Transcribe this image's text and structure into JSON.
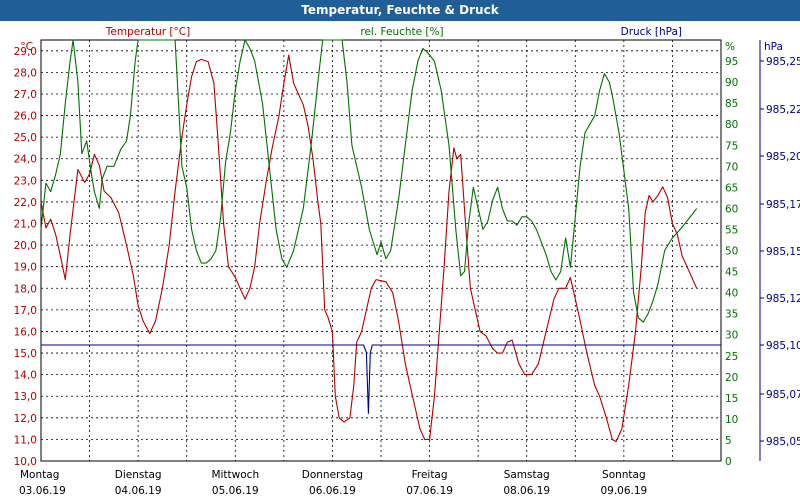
{
  "chart_data": {
    "type": "line",
    "title": "Temperatur, Feuchte & Druck",
    "legend": [
      {
        "name": "Temperatur [°C]",
        "color": "#b00000"
      },
      {
        "name": "rel. Feuchte [%]",
        "color": "#007000"
      },
      {
        "name": "Druck [hPa]",
        "color": "#00008b"
      }
    ],
    "axes": {
      "left": {
        "unit": "°C",
        "min": 10,
        "max": 29.5,
        "ticks": [
          "10,0",
          "11,0",
          "12,0",
          "13,0",
          "14,0",
          "15,0",
          "16,0",
          "17,0",
          "18,0",
          "19,0",
          "20,0",
          "21,0",
          "22,0",
          "23,0",
          "24,0",
          "25,0",
          "26,0",
          "27,0",
          "28,0",
          "29,0"
        ],
        "color": "#b00000"
      },
      "right1": {
        "unit": "%",
        "min": 0,
        "max": 100,
        "ticks": [
          "0",
          "5",
          "10",
          "15",
          "20",
          "25",
          "30",
          "35",
          "40",
          "45",
          "50",
          "55",
          "60",
          "65",
          "70",
          "75",
          "80",
          "85",
          "90",
          "95"
        ],
        "color": "#007000"
      },
      "right2": {
        "unit": "hPa",
        "ticks": [
          "985,05",
          "985,07",
          "985,10",
          "985,12",
          "985,15",
          "985,17",
          "985,20",
          "985,22",
          "985,25"
        ],
        "color": "#00008b"
      }
    },
    "x": {
      "days": [
        {
          "name": "Montag",
          "date": "03.06.19"
        },
        {
          "name": "Dienstag",
          "date": "04.06.19"
        },
        {
          "name": "Mittwoch",
          "date": "05.06.19"
        },
        {
          "name": "Donnerstag",
          "date": "06.06.19"
        },
        {
          "name": "Freitag",
          "date": "07.06.19"
        },
        {
          "name": "Samstag",
          "date": "08.06.19"
        },
        {
          "name": "Sonntag",
          "date": "09.06.19"
        }
      ],
      "min": 0,
      "max": 7,
      "grid_step": 0.5
    },
    "grid": true,
    "series": [
      {
        "name": "Temperatur [°C]",
        "axis": "left",
        "color": "#b00000",
        "points": [
          [
            0,
            22.0
          ],
          [
            0.05,
            20.8
          ],
          [
            0.1,
            21.2
          ],
          [
            0.15,
            20.5
          ],
          [
            0.2,
            19.5
          ],
          [
            0.25,
            18.4
          ],
          [
            0.3,
            20.5
          ],
          [
            0.38,
            23.5
          ],
          [
            0.45,
            22.9
          ],
          [
            0.5,
            23.3
          ],
          [
            0.55,
            24.2
          ],
          [
            0.6,
            23.7
          ],
          [
            0.65,
            22.5
          ],
          [
            0.72,
            22.2
          ],
          [
            0.8,
            21.5
          ],
          [
            0.88,
            20.0
          ],
          [
            0.95,
            18.6
          ],
          [
            1.0,
            17.2
          ],
          [
            1.05,
            16.5
          ],
          [
            1.12,
            15.9
          ],
          [
            1.18,
            16.5
          ],
          [
            1.25,
            18.0
          ],
          [
            1.32,
            20.0
          ],
          [
            1.38,
            22.5
          ],
          [
            1.45,
            25.0
          ],
          [
            1.5,
            26.5
          ],
          [
            1.55,
            27.8
          ],
          [
            1.6,
            28.5
          ],
          [
            1.65,
            28.6
          ],
          [
            1.72,
            28.5
          ],
          [
            1.78,
            27.5
          ],
          [
            1.82,
            25.0
          ],
          [
            1.88,
            21.0
          ],
          [
            1.93,
            19.0
          ],
          [
            2.0,
            18.5
          ],
          [
            2.05,
            18.0
          ],
          [
            2.1,
            17.5
          ],
          [
            2.15,
            18.0
          ],
          [
            2.2,
            19.0
          ],
          [
            2.25,
            21.0
          ],
          [
            2.32,
            23.0
          ],
          [
            2.38,
            24.5
          ],
          [
            2.45,
            26.0
          ],
          [
            2.5,
            27.5
          ],
          [
            2.55,
            28.8
          ],
          [
            2.6,
            27.5
          ],
          [
            2.65,
            27.0
          ],
          [
            2.7,
            26.5
          ],
          [
            2.75,
            25.5
          ],
          [
            2.8,
            24.0
          ],
          [
            2.85,
            22.0
          ],
          [
            2.88,
            21.0
          ],
          [
            2.92,
            17.0
          ],
          [
            2.95,
            16.7
          ],
          [
            3.0,
            16.0
          ],
          [
            3.03,
            13.0
          ],
          [
            3.07,
            12.0
          ],
          [
            3.12,
            11.8
          ],
          [
            3.18,
            12.0
          ],
          [
            3.22,
            13.5
          ],
          [
            3.25,
            15.5
          ],
          [
            3.3,
            16.0
          ],
          [
            3.35,
            17.0
          ],
          [
            3.4,
            18.0
          ],
          [
            3.45,
            18.4
          ],
          [
            3.55,
            18.3
          ],
          [
            3.62,
            17.8
          ],
          [
            3.68,
            16.5
          ],
          [
            3.75,
            14.5
          ],
          [
            3.8,
            13.5
          ],
          [
            3.85,
            12.5
          ],
          [
            3.9,
            11.5
          ],
          [
            3.95,
            11.0
          ],
          [
            4.0,
            11.0
          ],
          [
            4.05,
            13.0
          ],
          [
            4.1,
            16.0
          ],
          [
            4.15,
            19.0
          ],
          [
            4.2,
            22.5
          ],
          [
            4.25,
            24.5
          ],
          [
            4.28,
            24.0
          ],
          [
            4.32,
            24.2
          ],
          [
            4.37,
            21.0
          ],
          [
            4.42,
            18.0
          ],
          [
            4.47,
            17.0
          ],
          [
            4.52,
            16.0
          ],
          [
            4.58,
            15.8
          ],
          [
            4.65,
            15.2
          ],
          [
            4.7,
            15.0
          ],
          [
            4.75,
            15.0
          ],
          [
            4.8,
            15.5
          ],
          [
            4.85,
            15.6
          ],
          [
            4.92,
            14.5
          ],
          [
            4.98,
            14.0
          ],
          [
            5.05,
            14.0
          ],
          [
            5.12,
            14.5
          ],
          [
            5.2,
            16.0
          ],
          [
            5.28,
            17.5
          ],
          [
            5.33,
            18.0
          ],
          [
            5.4,
            18.0
          ],
          [
            5.45,
            18.5
          ],
          [
            5.5,
            17.5
          ],
          [
            5.55,
            16.5
          ],
          [
            5.62,
            15.0
          ],
          [
            5.7,
            13.5
          ],
          [
            5.75,
            13.0
          ],
          [
            5.82,
            12.0
          ],
          [
            5.88,
            11.0
          ],
          [
            5.92,
            10.9
          ],
          [
            5.98,
            11.5
          ],
          [
            6.05,
            13.5
          ],
          [
            6.12,
            16.0
          ],
          [
            6.18,
            19.0
          ],
          [
            6.22,
            21.5
          ],
          [
            6.26,
            22.3
          ],
          [
            6.3,
            22.0
          ],
          [
            6.35,
            22.3
          ],
          [
            6.4,
            22.7
          ],
          [
            6.45,
            22.2
          ],
          [
            6.5,
            21.0
          ],
          [
            6.55,
            20.5
          ],
          [
            6.6,
            19.5
          ],
          [
            6.65,
            19.0
          ],
          [
            6.7,
            18.5
          ],
          [
            6.75,
            18.0
          ]
        ]
      },
      {
        "name": "rel. Feuchte [%]",
        "axis": "right1",
        "color": "#007000",
        "points": [
          [
            0,
            55
          ],
          [
            0.05,
            66
          ],
          [
            0.1,
            64
          ],
          [
            0.15,
            68
          ],
          [
            0.2,
            73
          ],
          [
            0.25,
            85
          ],
          [
            0.3,
            95
          ],
          [
            0.33,
            100
          ],
          [
            0.38,
            90
          ],
          [
            0.42,
            73
          ],
          [
            0.47,
            76
          ],
          [
            0.52,
            68
          ],
          [
            0.55,
            64
          ],
          [
            0.6,
            60
          ],
          [
            0.63,
            67
          ],
          [
            0.68,
            70
          ],
          [
            0.75,
            70
          ],
          [
            0.82,
            74
          ],
          [
            0.88,
            76
          ],
          [
            0.92,
            82
          ],
          [
            0.97,
            95
          ],
          [
            1.0,
            100
          ],
          [
            1.38,
            100
          ],
          [
            1.45,
            70
          ],
          [
            1.5,
            65
          ],
          [
            1.55,
            55
          ],
          [
            1.6,
            50
          ],
          [
            1.65,
            47
          ],
          [
            1.7,
            47
          ],
          [
            1.75,
            48
          ],
          [
            1.8,
            50
          ],
          [
            1.85,
            58
          ],
          [
            1.9,
            71
          ],
          [
            1.95,
            78
          ],
          [
            2.0,
            88
          ],
          [
            2.05,
            95
          ],
          [
            2.1,
            100
          ],
          [
            2.15,
            98
          ],
          [
            2.2,
            95
          ],
          [
            2.28,
            85
          ],
          [
            2.35,
            70
          ],
          [
            2.42,
            55
          ],
          [
            2.48,
            48
          ],
          [
            2.53,
            46
          ],
          [
            2.6,
            50
          ],
          [
            2.7,
            60
          ],
          [
            2.78,
            75
          ],
          [
            2.85,
            90
          ],
          [
            2.9,
            100
          ],
          [
            3.0,
            100
          ],
          [
            3.1,
            100
          ],
          [
            3.15,
            90
          ],
          [
            3.2,
            75
          ],
          [
            3.3,
            65
          ],
          [
            3.38,
            55
          ],
          [
            3.42,
            52
          ],
          [
            3.46,
            49
          ],
          [
            3.5,
            52
          ],
          [
            3.55,
            48
          ],
          [
            3.6,
            50
          ],
          [
            3.68,
            62
          ],
          [
            3.75,
            75
          ],
          [
            3.82,
            88
          ],
          [
            3.88,
            95
          ],
          [
            3.93,
            98
          ],
          [
            3.98,
            97
          ],
          [
            4.05,
            95
          ],
          [
            4.12,
            88
          ],
          [
            4.2,
            75
          ],
          [
            4.27,
            55
          ],
          [
            4.32,
            44
          ],
          [
            4.36,
            45
          ],
          [
            4.4,
            56
          ],
          [
            4.45,
            65
          ],
          [
            4.5,
            60
          ],
          [
            4.55,
            55
          ],
          [
            4.6,
            57
          ],
          [
            4.65,
            62
          ],
          [
            4.7,
            65
          ],
          [
            4.75,
            60
          ],
          [
            4.8,
            57
          ],
          [
            4.85,
            57
          ],
          [
            4.9,
            56
          ],
          [
            4.95,
            58
          ],
          [
            5.0,
            58
          ],
          [
            5.05,
            57
          ],
          [
            5.1,
            55
          ],
          [
            5.15,
            52
          ],
          [
            5.2,
            49
          ],
          [
            5.25,
            45
          ],
          [
            5.3,
            43
          ],
          [
            5.35,
            45
          ],
          [
            5.4,
            53
          ],
          [
            5.45,
            46
          ],
          [
            5.5,
            58
          ],
          [
            5.55,
            70
          ],
          [
            5.6,
            78
          ],
          [
            5.65,
            80
          ],
          [
            5.7,
            82
          ],
          [
            5.75,
            88
          ],
          [
            5.8,
            92
          ],
          [
            5.85,
            90
          ],
          [
            5.88,
            87
          ],
          [
            5.95,
            78
          ],
          [
            6.05,
            60
          ],
          [
            6.1,
            40
          ],
          [
            6.15,
            34
          ],
          [
            6.2,
            33
          ],
          [
            6.25,
            35
          ],
          [
            6.3,
            38
          ],
          [
            6.35,
            42
          ],
          [
            6.42,
            50
          ],
          [
            6.5,
            53
          ],
          [
            6.58,
            55
          ],
          [
            6.65,
            57
          ],
          [
            6.75,
            60
          ]
        ]
      },
      {
        "name": "Druck [hPa]",
        "axis": "right2",
        "color": "#00008b",
        "points": [
          [
            0,
            985.1
          ],
          [
            3.32,
            985.1
          ],
          [
            3.35,
            985.095
          ],
          [
            3.37,
            985.055
          ],
          [
            3.39,
            985.095
          ],
          [
            3.41,
            985.1
          ],
          [
            7,
            985.1
          ]
        ]
      }
    ]
  }
}
